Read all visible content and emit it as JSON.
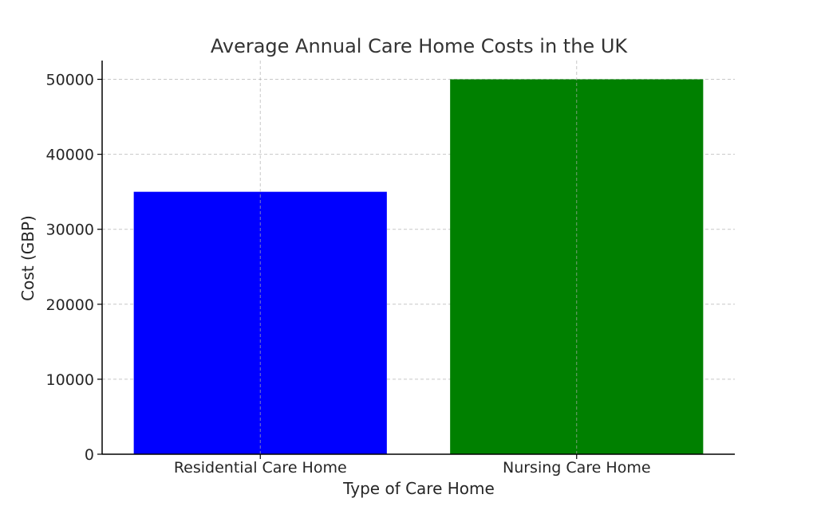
{
  "chart_data": {
    "type": "bar",
    "title": "Average Annual Care Home Costs in the UK",
    "xlabel": "Type of Care Home",
    "ylabel": "Cost (GBP)",
    "categories": [
      "Residential Care Home",
      "Nursing Care Home"
    ],
    "values": [
      35000,
      50000
    ],
    "colors": [
      "#0000ff",
      "#008000"
    ],
    "ylim": [
      0,
      52500
    ],
    "yticks": [
      0,
      10000,
      20000,
      30000,
      40000,
      50000
    ],
    "grid": true
  }
}
